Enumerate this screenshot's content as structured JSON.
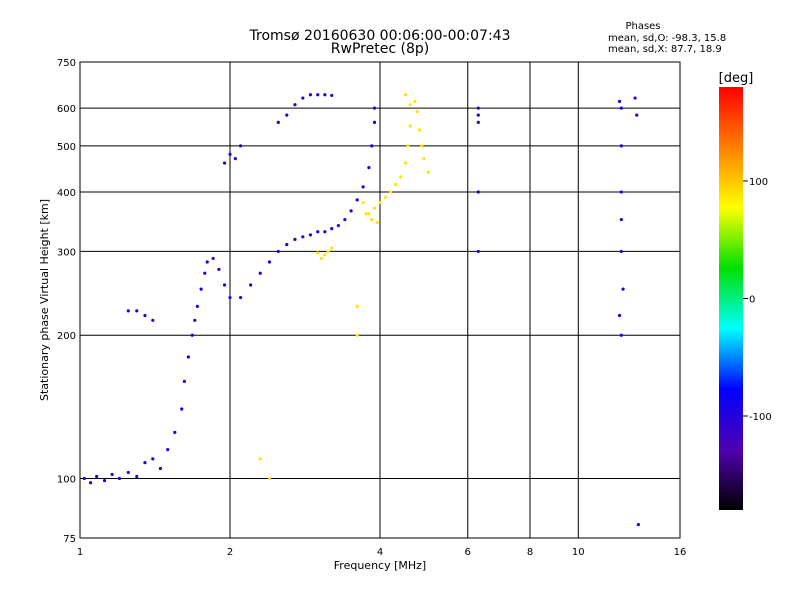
{
  "chart_data": {
    "type": "scatter",
    "title": "Tromsø 20160630 00:06:00-00:07:43",
    "subtitle": "RwPretec (8p)",
    "xlabel": "Frequency [MHz]",
    "ylabel": "Stationary phase Virtual Height [km]",
    "x_scale": "log",
    "y_scale": "log",
    "xlim": [
      1,
      16
    ],
    "ylim": [
      75,
      750
    ],
    "x_ticks": [
      1,
      2,
      4,
      6,
      8,
      10,
      16
    ],
    "y_ticks": [
      75,
      100,
      200,
      300,
      400,
      500,
      600,
      750
    ],
    "x_gridlines": [
      2,
      4,
      6,
      8,
      10
    ],
    "y_gridlines": [
      100,
      200,
      300,
      400,
      500,
      600
    ],
    "grid": true,
    "phases_header": "Phases",
    "phases_stats": [
      "mean, sd,O: -98.3, 15.8",
      "mean, sd,X:  87.7, 18.9"
    ],
    "colorbar": {
      "label": "[deg]",
      "range": [
        -180,
        180
      ],
      "ticks": [
        100,
        0,
        -100
      ],
      "colors": [
        "#ff0000",
        "#ff8000",
        "#ffff00",
        "#00e000",
        "#00ffff",
        "#0000ff",
        "#5000b0",
        "#000000"
      ]
    },
    "series": [
      {
        "mode": "O",
        "phase_deg": -98,
        "points": [
          [
            1.02,
            100
          ],
          [
            1.05,
            98
          ],
          [
            1.08,
            101
          ],
          [
            1.12,
            99
          ],
          [
            1.16,
            102
          ],
          [
            1.2,
            100
          ],
          [
            1.25,
            103
          ],
          [
            1.3,
            101
          ],
          [
            1.35,
            108
          ],
          [
            1.4,
            110
          ],
          [
            1.45,
            105
          ],
          [
            1.5,
            115
          ],
          [
            1.55,
            125
          ],
          [
            1.6,
            140
          ],
          [
            1.62,
            160
          ],
          [
            1.65,
            180
          ],
          [
            1.68,
            200
          ],
          [
            1.7,
            215
          ],
          [
            1.72,
            230
          ],
          [
            1.75,
            250
          ],
          [
            1.78,
            270
          ],
          [
            1.8,
            285
          ],
          [
            1.85,
            290
          ],
          [
            1.9,
            275
          ],
          [
            1.95,
            255
          ],
          [
            2.0,
            240
          ],
          [
            2.1,
            240
          ],
          [
            2.2,
            255
          ],
          [
            2.3,
            270
          ],
          [
            2.4,
            285
          ],
          [
            2.5,
            300
          ],
          [
            2.6,
            310
          ],
          [
            2.7,
            318
          ],
          [
            2.8,
            322
          ],
          [
            2.9,
            325
          ],
          [
            3.0,
            330
          ],
          [
            3.1,
            330
          ],
          [
            3.2,
            335
          ],
          [
            3.3,
            340
          ],
          [
            3.4,
            350
          ],
          [
            3.5,
            365
          ],
          [
            3.6,
            385
          ],
          [
            3.7,
            410
          ],
          [
            3.8,
            450
          ],
          [
            3.85,
            500
          ],
          [
            3.9,
            560
          ],
          [
            3.9,
            600
          ],
          [
            2.0,
            480
          ],
          [
            2.1,
            500
          ],
          [
            1.95,
            460
          ],
          [
            2.05,
            470
          ],
          [
            2.5,
            560
          ],
          [
            2.6,
            580
          ],
          [
            2.7,
            610
          ],
          [
            2.8,
            630
          ],
          [
            2.9,
            640
          ],
          [
            3.0,
            640
          ],
          [
            3.1,
            640
          ],
          [
            3.2,
            638
          ],
          [
            1.25,
            225
          ],
          [
            1.3,
            225
          ],
          [
            1.35,
            220
          ],
          [
            1.4,
            215
          ],
          [
            6.3,
            600
          ],
          [
            6.3,
            400
          ],
          [
            6.3,
            580
          ],
          [
            6.3,
            560
          ],
          [
            6.3,
            300
          ],
          [
            12.1,
            620
          ],
          [
            12.2,
            600
          ],
          [
            12.2,
            500
          ],
          [
            12.2,
            400
          ],
          [
            12.2,
            350
          ],
          [
            12.2,
            300
          ],
          [
            12.3,
            250
          ],
          [
            12.1,
            220
          ],
          [
            12.2,
            200
          ],
          [
            13.0,
            630
          ],
          [
            13.1,
            580
          ],
          [
            13.2,
            80
          ]
        ]
      },
      {
        "mode": "X",
        "phase_deg": 88,
        "points": [
          [
            3.05,
            290
          ],
          [
            3.1,
            295
          ],
          [
            3.15,
            300
          ],
          [
            3.2,
            305
          ],
          [
            3.0,
            298
          ],
          [
            3.8,
            360
          ],
          [
            3.9,
            370
          ],
          [
            4.0,
            380
          ],
          [
            4.1,
            390
          ],
          [
            4.2,
            400
          ],
          [
            4.3,
            415
          ],
          [
            4.4,
            430
          ],
          [
            4.5,
            460
          ],
          [
            4.55,
            500
          ],
          [
            4.6,
            550
          ],
          [
            4.6,
            610
          ],
          [
            4.5,
            640
          ],
          [
            4.7,
            620
          ],
          [
            4.75,
            590
          ],
          [
            4.8,
            540
          ],
          [
            4.85,
            500
          ],
          [
            4.9,
            470
          ],
          [
            5.0,
            440
          ],
          [
            3.7,
            380
          ],
          [
            3.75,
            360
          ],
          [
            3.85,
            350
          ],
          [
            3.95,
            345
          ],
          [
            3.6,
            230
          ],
          [
            3.6,
            200
          ],
          [
            2.4,
            100
          ],
          [
            2.3,
            110
          ]
        ]
      }
    ]
  }
}
